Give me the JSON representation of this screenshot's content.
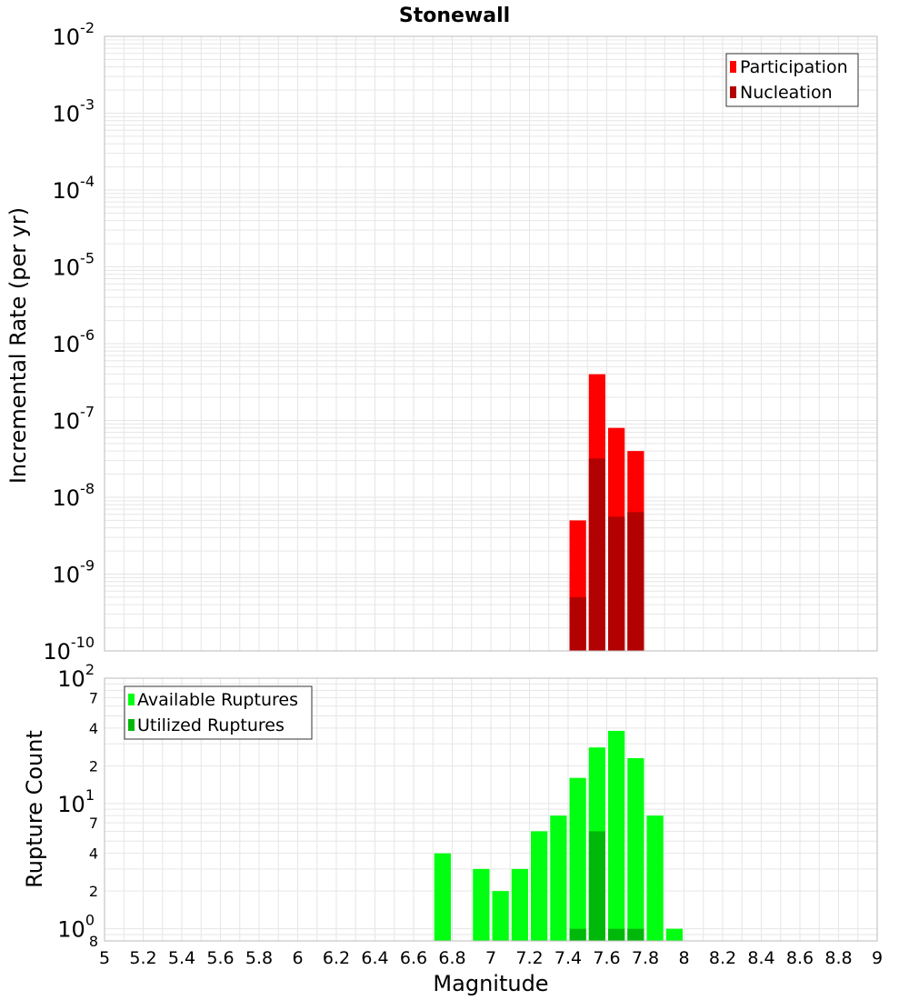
{
  "title": "Stonewall",
  "colors": {
    "participation": "#ff0000",
    "nucleation": "#b30000",
    "available": "#00ff10",
    "utilized": "#00b80a",
    "grid": "#e6e6e6",
    "frame": "#bbbbbb"
  },
  "chart_data": [
    {
      "type": "bar",
      "name": "incremental-rate",
      "ylabel": "Incremental Rate (per yr)",
      "yscale": "log",
      "ylim": [
        1e-10,
        0.01
      ],
      "y_major_ticks": [
        {
          "value": 1e-10,
          "base": "10",
          "exp": "-10"
        },
        {
          "value": 1e-09,
          "base": "10",
          "exp": "-9"
        },
        {
          "value": 1e-08,
          "base": "10",
          "exp": "-8"
        },
        {
          "value": 1e-07,
          "base": "10",
          "exp": "-7"
        },
        {
          "value": 1e-06,
          "base": "10",
          "exp": "-6"
        },
        {
          "value": 1e-05,
          "base": "10",
          "exp": "-5"
        },
        {
          "value": 0.0001,
          "base": "10",
          "exp": "-4"
        },
        {
          "value": 0.001,
          "base": "10",
          "exp": "-3"
        },
        {
          "value": 0.01,
          "base": "10",
          "exp": "-2"
        }
      ],
      "xlim": [
        5,
        9
      ],
      "bin_width": 0.1,
      "legend": {
        "placement": "top-right",
        "entries": [
          "Participation",
          "Nucleation"
        ]
      },
      "series": [
        {
          "name": "Participation",
          "color": "#ff0000",
          "x": [
            7.45,
            7.55,
            7.65,
            7.75
          ],
          "values": [
            5e-09,
            4e-07,
            8e-08,
            4e-08
          ]
        },
        {
          "name": "Nucleation",
          "color": "#b30000",
          "x": [
            7.45,
            7.55,
            7.65,
            7.75
          ],
          "values": [
            5e-10,
            3.2e-08,
            5.6e-09,
            6.4e-09
          ]
        }
      ]
    },
    {
      "type": "bar",
      "name": "rupture-count",
      "ylabel": "Rupture Count",
      "xlabel": "Magnitude",
      "yscale": "log",
      "ylim": [
        0.8,
        100
      ],
      "y_major_ticks": [
        {
          "value": 1,
          "base": "10",
          "exp": "0"
        },
        {
          "value": 10,
          "base": "10",
          "exp": "1"
        },
        {
          "value": 100,
          "base": "10",
          "exp": "2"
        }
      ],
      "y_minor_labels": [
        {
          "value": 0.8,
          "label": "8"
        },
        {
          "value": 2,
          "label": "2"
        },
        {
          "value": 4,
          "label": "4"
        },
        {
          "value": 7,
          "label": "7"
        },
        {
          "value": 20,
          "label": "2"
        },
        {
          "value": 40,
          "label": "4"
        },
        {
          "value": 70,
          "label": "7"
        }
      ],
      "xlim": [
        5,
        9
      ],
      "xticks": [
        5,
        5.2,
        5.4,
        5.6,
        5.8,
        6,
        6.2,
        6.4,
        6.6,
        6.8,
        7,
        7.2,
        7.4,
        7.6,
        7.8,
        8,
        8.2,
        8.4,
        8.6,
        8.8,
        9
      ],
      "xtick_labels": [
        "5",
        "5.2",
        "5.4",
        "5.6",
        "5.8",
        "6",
        "6.2",
        "6.4",
        "6.6",
        "6.8",
        "7",
        "7.2",
        "7.4",
        "7.6",
        "7.8",
        "8",
        "8.2",
        "8.4",
        "8.6",
        "8.8",
        "9"
      ],
      "bin_width": 0.1,
      "legend": {
        "placement": "top-left",
        "entries": [
          "Available Ruptures",
          "Utilized Ruptures"
        ]
      },
      "series": [
        {
          "name": "Available Ruptures",
          "color": "#00ff10",
          "x": [
            6.75,
            6.95,
            7.05,
            7.15,
            7.25,
            7.35,
            7.45,
            7.55,
            7.65,
            7.75,
            7.85,
            7.95
          ],
          "values": [
            4,
            3,
            2,
            3,
            6,
            8,
            16,
            28,
            38,
            23,
            8,
            1
          ]
        },
        {
          "name": "Utilized Ruptures",
          "color": "#00b80a",
          "x": [
            7.45,
            7.55,
            7.65,
            7.75
          ],
          "values": [
            1,
            6,
            1,
            1
          ]
        }
      ]
    }
  ]
}
